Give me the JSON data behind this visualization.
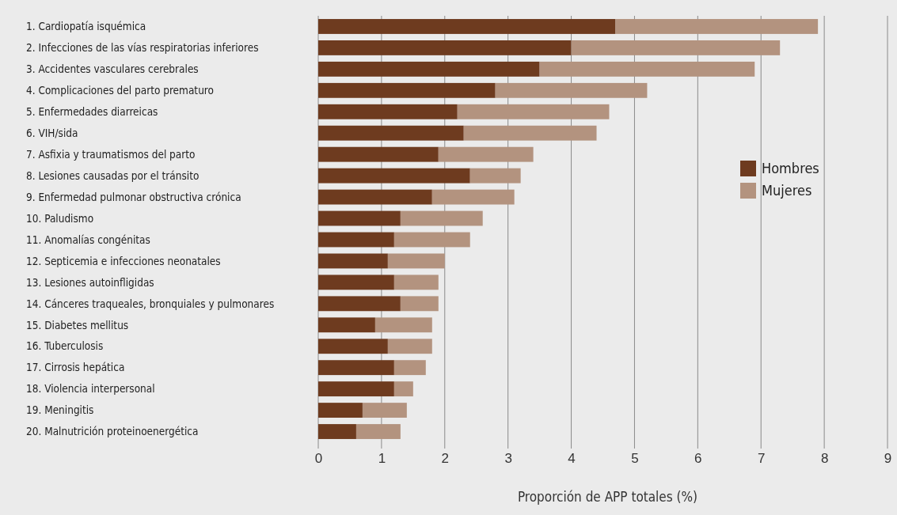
{
  "chart_data": {
    "type": "bar",
    "orientation": "horizontal",
    "stacked": true,
    "xlabel": "Proporción de APP totales (%)",
    "categories": [
      "1. Cardiopatía isquémica",
      "2. Infecciones de las vías respiratorias inferiores",
      "3. Accidentes vasculares cerebrales",
      "4. Complicaciones del parto prematuro",
      "5. Enfermedades diarreicas",
      "6. VIH/sida",
      "7. Asfixia y traumatismos del parto",
      "8. Lesiones causadas por el tránsito",
      "9. Enfermedad pulmonar obstructiva crónica",
      "10. Paludismo",
      "11. Anomalías congénitas",
      "12. Septicemia e infecciones neonatales",
      "13. Lesiones autoinfligidas",
      "14. Cánceres traqueales, bronquiales y pulmonares",
      "15. Diabetes mellitus",
      "16. Tuberculosis",
      "17. Cirrosis hepática",
      "18. Violencia interpersonal",
      "19. Meningitis",
      "20. Malnutrición proteinoenergética"
    ],
    "series": [
      {
        "name": "Hombres",
        "color": "#6e3b1f",
        "values": [
          4.7,
          4.0,
          3.5,
          2.8,
          2.2,
          2.3,
          1.9,
          2.4,
          1.8,
          1.3,
          1.2,
          1.1,
          1.2,
          1.3,
          0.9,
          1.1,
          1.2,
          1.2,
          0.7,
          0.6
        ]
      },
      {
        "name": "Mujeres",
        "color": "#b3937f",
        "values": [
          3.2,
          3.3,
          3.4,
          2.4,
          2.4,
          2.1,
          1.5,
          0.8,
          1.3,
          1.3,
          1.2,
          0.9,
          0.7,
          0.6,
          0.9,
          0.7,
          0.5,
          0.3,
          0.7,
          0.7
        ]
      }
    ],
    "xlim": [
      0,
      9
    ],
    "xticks": [
      0,
      1,
      2,
      3,
      4,
      5,
      6,
      7,
      8,
      9
    ],
    "grid": "x",
    "legend": "right"
  }
}
